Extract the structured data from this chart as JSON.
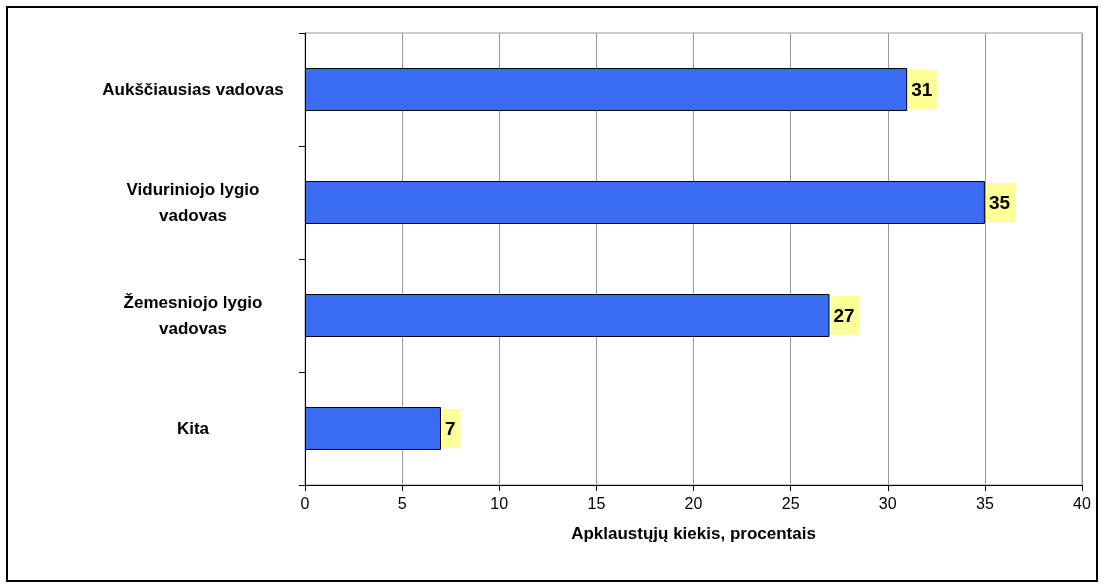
{
  "chart_data": {
    "type": "bar",
    "orientation": "horizontal",
    "xlabel": "Apklaustųjų kiekis, procentais",
    "categories": [
      "Aukščiausias vadovas",
      "Viduriniojo lygio\nvadovas",
      "Žemesniojo lygio\nvadovas",
      "Kita"
    ],
    "values": [
      31,
      35,
      27,
      7
    ],
    "color": "#3a6cf4",
    "xlim": [
      0,
      40
    ],
    "xticks": [
      0,
      5,
      10,
      15,
      20,
      25,
      30,
      35,
      40
    ],
    "grid": "x",
    "data_labels": true
  }
}
